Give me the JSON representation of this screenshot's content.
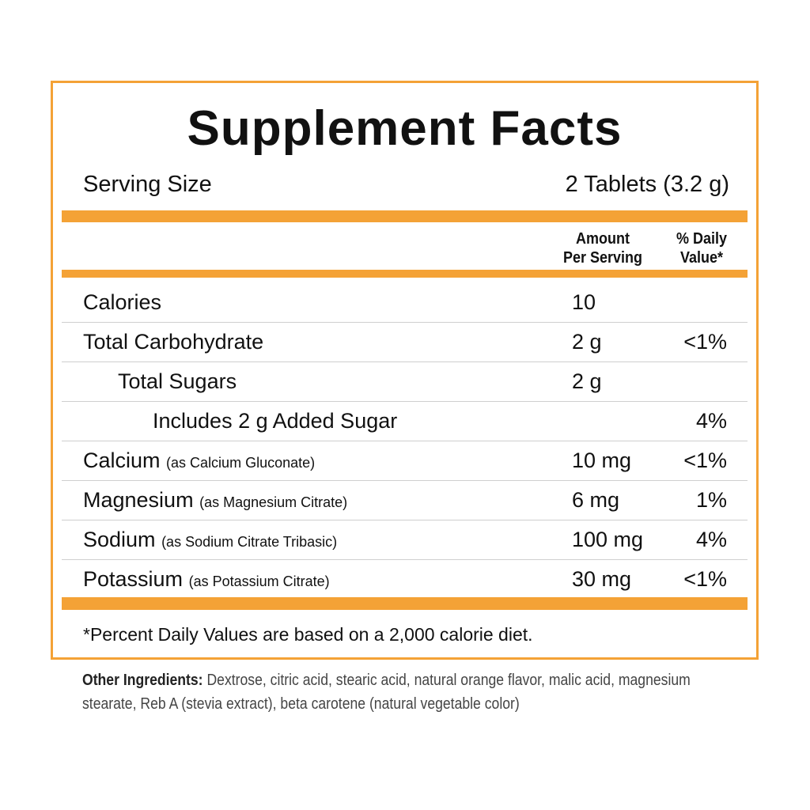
{
  "title": "Supplement Facts",
  "serving": {
    "label": "Serving Size",
    "value": "2 Tablets (3.2 g)"
  },
  "headers": {
    "amount_line1": "Amount",
    "amount_line2": "Per Serving",
    "dv_line1": "% Daily",
    "dv_line2": "Value*"
  },
  "rows": [
    {
      "name": "Calories",
      "detail": "",
      "amount": "10",
      "dv": ""
    },
    {
      "name": "Total Carbohydrate",
      "detail": "",
      "amount": "2 g",
      "dv": "<1%"
    },
    {
      "name": "Total Sugars",
      "detail": "",
      "amount": "2 g",
      "dv": ""
    },
    {
      "name": "Includes 2 g Added Sugar",
      "detail": "",
      "amount": "",
      "dv": "4%"
    },
    {
      "name": "Calcium",
      "detail": "(as Calcium Gluconate)",
      "amount": "10 mg",
      "dv": "<1%"
    },
    {
      "name": "Magnesium",
      "detail": "(as Magnesium Citrate)",
      "amount": "6 mg",
      "dv": "1%"
    },
    {
      "name": "Sodium",
      "detail": "(as Sodium Citrate Tribasic)",
      "amount": "100 mg",
      "dv": "4%"
    },
    {
      "name": "Potassium",
      "detail": "(as Potassium Citrate)",
      "amount": "30 mg",
      "dv": "<1%"
    }
  ],
  "footnote": "*Percent Daily Values are based on a 2,000 calorie diet.",
  "other_ingredients": {
    "label": "Other Ingredients:",
    "text": "Dextrose, citric acid, stearic acid, natural orange flavor, malic acid, magnesium stearate, Reb A (stevia extract), beta carotene (natural vegetable color)"
  },
  "colors": {
    "accent": "#F4A236",
    "divider": "#cfcfcf"
  }
}
